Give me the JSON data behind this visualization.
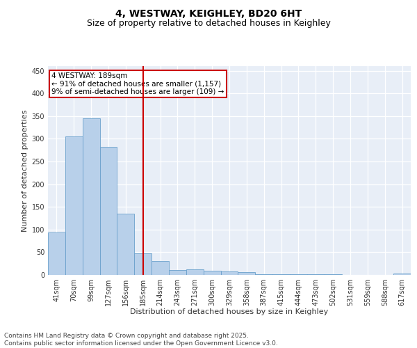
{
  "title1": "4, WESTWAY, KEIGHLEY, BD20 6HT",
  "title2": "Size of property relative to detached houses in Keighley",
  "xlabel": "Distribution of detached houses by size in Keighley",
  "ylabel": "Number of detached properties",
  "categories": [
    "41sqm",
    "70sqm",
    "99sqm",
    "127sqm",
    "156sqm",
    "185sqm",
    "214sqm",
    "243sqm",
    "271sqm",
    "300sqm",
    "329sqm",
    "358sqm",
    "387sqm",
    "415sqm",
    "444sqm",
    "473sqm",
    "502sqm",
    "531sqm",
    "559sqm",
    "588sqm",
    "617sqm"
  ],
  "values": [
    93,
    305,
    345,
    282,
    135,
    47,
    30,
    11,
    12,
    9,
    7,
    6,
    2,
    2,
    1,
    1,
    1,
    0,
    0,
    0,
    3
  ],
  "bar_color": "#b8d0ea",
  "bar_edge_color": "#6aa0cc",
  "vline_x": 5.0,
  "vline_color": "#cc0000",
  "annotation_text": "4 WESTWAY: 189sqm\n← 91% of detached houses are smaller (1,157)\n9% of semi-detached houses are larger (109) →",
  "annotation_box_color": "#cc0000",
  "annotation_text_color": "#000000",
  "ylim": [
    0,
    460
  ],
  "yticks": [
    0,
    50,
    100,
    150,
    200,
    250,
    300,
    350,
    400,
    450
  ],
  "background_color": "#e8eef7",
  "footer_text": "Contains HM Land Registry data © Crown copyright and database right 2025.\nContains public sector information licensed under the Open Government Licence v3.0.",
  "title_fontsize": 10,
  "subtitle_fontsize": 9,
  "axis_label_fontsize": 8,
  "tick_fontsize": 7,
  "annotation_fontsize": 7.5,
  "footer_fontsize": 6.5
}
